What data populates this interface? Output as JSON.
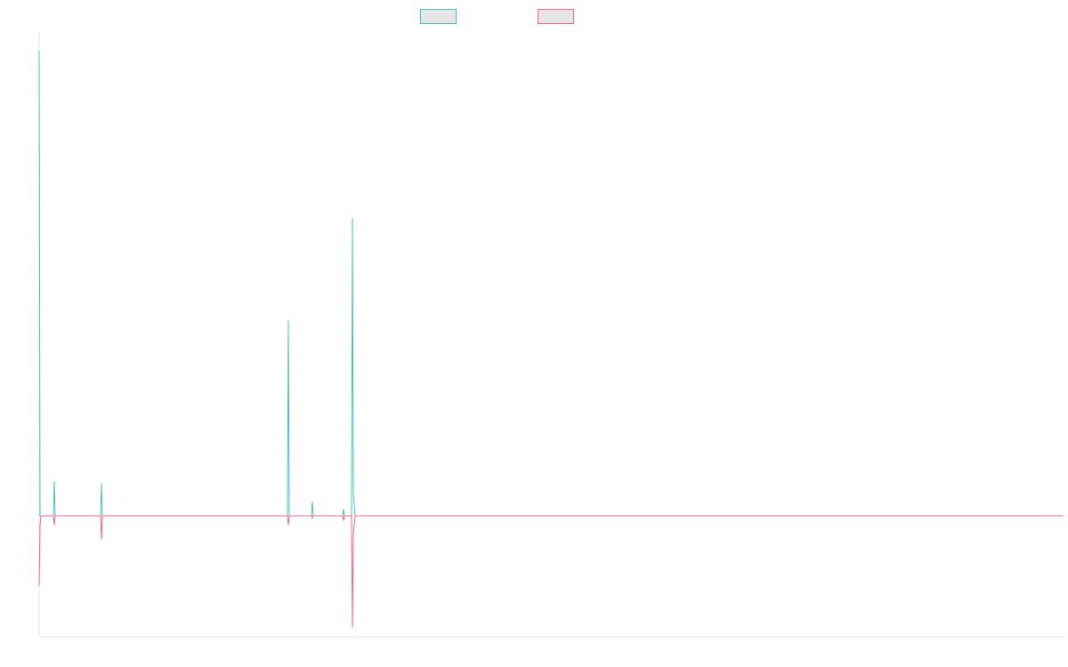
{
  "chart_data": {
    "type": "line",
    "title": "",
    "xlabel": "",
    "ylabel": "",
    "ylim": [
      -2.6,
      10.4
    ],
    "x": [
      0,
      1,
      2,
      3,
      4,
      5,
      6,
      7,
      8,
      9,
      10,
      11,
      12,
      13,
      14,
      15,
      16,
      17,
      18,
      19,
      20,
      21,
      22,
      23,
      24,
      25,
      26,
      27,
      28,
      29,
      30,
      31,
      32,
      33,
      34,
      35,
      36,
      37,
      38,
      39,
      40,
      41,
      42,
      43,
      44,
      45,
      46,
      47,
      48,
      49,
      50,
      51,
      52,
      53,
      54,
      55,
      56,
      57,
      58,
      59,
      60,
      61,
      62,
      63,
      64,
      65,
      66,
      67,
      68,
      69,
      70,
      71,
      72,
      73,
      74,
      75,
      76,
      77,
      78,
      79,
      80,
      81,
      82,
      83,
      84,
      85,
      86,
      87,
      88,
      89,
      90,
      91,
      92,
      93,
      94,
      95,
      96,
      97,
      98,
      99,
      100,
      101,
      102,
      103,
      104,
      105,
      106,
      107,
      108,
      109,
      110,
      111,
      112,
      113,
      114,
      115,
      116,
      117,
      118,
      119,
      120,
      121,
      122,
      123,
      124,
      125,
      126,
      127,
      128,
      129,
      130,
      131,
      132,
      133,
      134,
      135,
      136,
      137,
      138,
      139,
      140,
      141,
      142,
      143,
      144,
      145,
      146,
      147,
      148,
      149,
      150,
      151,
      152,
      153,
      154,
      155,
      156,
      157,
      158,
      159,
      160,
      161,
      162,
      163,
      164,
      165,
      166,
      167,
      168,
      169,
      170,
      171,
      172,
      173,
      174,
      175,
      176,
      177,
      178,
      179,
      180,
      181,
      182,
      183,
      184,
      185,
      186,
      187,
      188,
      189,
      190,
      191,
      192,
      193,
      194,
      195,
      196,
      197,
      198,
      199,
      200,
      201,
      202,
      203,
      204,
      205,
      206,
      207,
      208,
      209,
      210,
      211,
      212,
      213,
      214,
      215,
      216,
      217,
      218,
      219,
      220,
      221,
      222,
      223,
      224,
      225,
      226,
      227,
      228,
      229,
      230,
      231,
      232,
      233,
      234,
      235,
      236,
      237,
      238,
      239,
      240,
      241,
      242,
      243,
      244,
      245,
      246,
      247,
      248,
      249,
      250,
      251,
      252,
      253,
      254,
      255,
      256,
      257,
      258,
      259,
      260,
      261,
      262,
      263,
      264,
      265,
      266,
      267,
      268,
      269,
      270,
      271,
      272,
      273,
      274,
      275,
      276,
      277,
      278,
      279,
      280,
      281,
      282,
      283,
      284,
      285,
      286,
      287,
      288,
      289,
      290,
      291,
      292,
      293,
      294,
      295,
      296,
      297,
      298,
      299,
      300,
      301,
      302,
      303,
      304,
      305,
      306,
      307,
      308,
      309,
      310,
      311,
      312,
      313,
      314,
      315,
      316,
      317,
      318,
      319,
      320,
      321,
      322,
      323,
      324,
      325,
      326,
      327,
      328,
      329,
      330,
      331,
      332,
      333,
      334,
      335,
      336,
      337,
      338,
      339,
      340,
      341,
      342,
      343,
      344,
      345,
      346,
      347,
      348,
      349,
      350,
      351,
      352,
      353,
      354,
      355,
      356,
      357,
      358,
      359,
      360,
      361,
      362,
      363,
      364,
      365,
      366,
      367,
      368,
      369,
      370,
      371,
      372,
      373,
      374,
      375,
      376,
      377,
      378,
      379,
      380,
      381,
      382,
      383,
      384,
      385,
      386,
      387,
      388,
      389,
      390,
      391,
      392,
      393,
      394,
      395,
      396,
      397,
      398,
      399,
      400,
      401,
      402,
      403,
      404,
      405,
      406,
      407,
      408,
      409,
      410,
      411,
      412,
      413,
      414,
      415,
      416,
      417,
      418,
      419,
      420,
      421,
      422,
      423,
      424,
      425,
      426,
      427,
      428,
      429,
      430,
      431,
      432,
      433,
      434,
      435,
      436,
      437,
      438,
      439,
      440,
      441,
      442,
      443,
      444,
      445,
      446,
      447,
      448,
      449,
      450,
      451,
      452,
      453,
      454,
      455,
      456,
      457,
      458,
      459,
      460,
      461,
      462,
      463,
      464,
      465,
      466,
      467,
      468,
      469,
      470,
      471,
      472,
      473,
      474,
      475,
      476,
      477,
      478,
      479,
      480,
      481,
      482,
      483,
      484,
      485,
      486,
      487,
      488,
      489,
      490,
      491,
      492,
      493,
      494,
      495,
      496,
      497,
      498,
      499,
      500,
      501,
      502,
      503,
      504,
      505,
      506,
      507,
      508,
      509,
      510,
      511,
      512,
      513,
      514,
      515,
      516,
      517,
      518,
      519,
      520,
      521,
      522,
      523,
      524,
      525,
      526,
      527,
      528,
      529,
      530,
      531,
      532,
      533,
      534,
      535,
      536,
      537,
      538,
      539,
      540,
      541,
      542,
      543,
      544,
      545,
      546,
      547,
      548,
      549,
      550,
      551,
      552,
      553,
      554,
      555,
      556,
      557,
      558,
      559,
      560,
      561,
      562,
      563,
      564,
      565,
      566,
      567,
      568,
      569,
      570,
      571,
      572,
      573,
      574,
      575,
      576,
      577,
      578,
      579,
      580,
      581,
      582,
      583,
      584,
      585,
      586,
      587,
      588,
      589,
      590,
      591,
      592,
      593,
      594,
      595,
      596,
      597,
      598,
      599,
      600,
      601,
      602,
      603,
      604,
      605,
      606,
      607,
      608,
      609,
      610,
      611,
      612,
      613,
      614,
      615,
      616,
      617,
      618,
      619,
      620,
      621,
      622,
      623,
      624,
      625,
      626,
      627,
      628,
      629,
      630,
      631,
      632,
      633,
      634,
      635,
      636,
      637,
      638,
      639,
      640,
      641,
      642,
      643,
      644,
      645,
      646,
      647,
      648,
      649,
      650,
      651,
      652,
      653,
      654,
      655,
      656,
      657,
      658,
      659,
      660,
      661,
      662,
      663,
      664,
      665,
      666,
      667,
      668,
      669,
      670,
      671,
      672,
      673,
      674,
      675,
      676,
      677,
      678,
      679,
      680,
      681,
      682,
      683,
      684,
      685,
      686,
      687,
      688,
      689,
      690,
      691,
      692,
      693,
      694,
      695,
      696,
      697,
      698,
      699,
      700,
      701,
      702,
      703,
      704,
      705,
      706,
      707,
      708,
      709,
      710,
      711,
      712,
      713,
      714,
      715,
      716,
      717,
      718,
      719,
      720,
      721,
      722,
      723,
      724,
      725,
      726,
      727,
      728,
      729,
      730,
      731,
      732,
      733,
      734,
      735,
      736,
      737,
      738,
      739,
      740,
      741,
      742,
      743,
      744,
      745,
      746,
      747,
      748,
      749,
      750,
      751,
      752,
      753,
      754,
      755,
      756,
      757,
      758,
      759,
      760,
      761,
      762,
      763,
      764,
      765,
      766,
      767,
      768,
      769,
      770,
      771,
      772,
      773,
      774,
      775,
      776,
      777,
      778,
      779,
      780,
      781,
      782,
      783,
      784,
      785,
      786,
      787,
      788,
      789,
      790,
      791,
      792,
      793,
      794,
      795,
      796,
      797,
      798,
      799,
      800,
      801,
      802,
      803,
      804,
      805,
      806,
      807,
      808,
      809,
      810,
      811,
      812,
      813,
      814,
      815,
      816,
      817,
      818,
      819,
      820,
      821,
      822,
      823,
      824,
      825,
      826,
      827,
      828,
      829,
      830,
      831,
      832,
      833,
      834,
      835,
      836,
      837,
      838,
      839,
      840,
      841,
      842,
      843,
      844,
      845,
      846,
      847,
      848,
      849,
      850,
      851,
      852,
      853,
      854,
      855,
      856,
      857,
      858,
      859,
      860,
      861,
      862,
      863,
      864,
      865,
      866,
      867,
      868,
      869,
      870,
      871,
      872,
      873,
      874,
      875,
      876,
      877,
      878,
      879,
      880,
      881,
      882,
      883,
      884,
      885,
      886,
      887,
      888,
      889,
      890,
      891,
      892,
      893,
      894,
      895,
      896,
      897,
      898,
      899,
      900,
      901,
      902,
      903,
      904,
      905,
      906,
      907,
      908,
      909,
      910,
      911,
      912,
      913,
      914,
      915,
      916,
      917,
      918,
      919,
      920,
      921,
      922,
      923,
      924,
      925,
      926,
      927,
      928,
      929,
      930,
      931,
      932,
      933,
      934,
      935,
      936,
      937,
      938,
      939,
      940,
      941,
      942,
      943,
      944,
      945,
      946,
      947,
      948,
      949,
      950,
      951,
      952,
      953,
      954,
      955,
      956,
      957,
      958,
      959,
      960,
      961,
      962,
      963,
      964,
      965,
      966,
      967,
      968,
      969,
      970,
      971,
      972,
      973,
      974,
      975,
      976,
      977,
      978,
      979,
      980,
      981,
      982,
      983,
      984,
      985,
      986,
      987,
      988,
      989,
      990,
      991,
      992,
      993,
      994,
      995,
      996,
      997,
      998,
      999,
      1000,
      1001,
      1002,
      1003,
      1004,
      1005,
      1006,
      1007,
      1008,
      1009,
      1010,
      1011,
      1012,
      1013,
      1014,
      1015,
      1016,
      1017,
      1018,
      1019,
      1020,
      1021,
      1022,
      1023,
      1024,
      1025,
      1026,
      1027,
      1028,
      1029,
      1030,
      1031,
      1032,
      1033,
      1034,
      1035,
      1036,
      1037,
      1038,
      1039,
      1040,
      1041,
      1042,
      1043,
      1044,
      1045,
      1046,
      1047,
      1048,
      1049,
      1050,
      1051,
      1052,
      1053,
      1054,
      1055,
      1056,
      1057,
      1058,
      1059,
      1060,
      1061,
      1062,
      1063,
      1064,
      1065,
      1066,
      1067,
      1068,
      1069,
      1070,
      1071,
      1072,
      1073,
      1074,
      1075,
      1076,
      1077,
      1078,
      1079,
      1080,
      1081,
      1082,
      1083,
      1084,
      1085,
      1086,
      1087,
      1088,
      1089,
      1090,
      1091,
      1092,
      1093,
      1094,
      1095,
      1096,
      1097,
      1098,
      1099,
      1100,
      1101,
      1102,
      1103,
      1104,
      1105,
      1106,
      1107,
      1108,
      1109,
      1110,
      1111,
      1112,
      1113,
      1114,
      1115,
      1116,
      1117,
      1118,
      1119,
      1120,
      1121,
      1122,
      1123,
      1124,
      1125,
      1126,
      1127,
      1128,
      1129,
      1130,
      1131,
      1132,
      1133,
      1134,
      1135,
      1136,
      1137,
      1138,
      1139,
      1140,
      1141,
      1142,
      1143,
      1144,
      1145,
      1146,
      1147,
      1148,
      1149,
      1150,
      1151
    ],
    "series": [
      {
        "color": "#4bc0c0",
        "points": [
          [
            0,
            10
          ],
          [
            1,
            0
          ],
          [
            16,
            0
          ],
          [
            17,
            0.75
          ],
          [
            18,
            0
          ],
          [
            69,
            0
          ],
          [
            70,
            0.7
          ],
          [
            71,
            0
          ],
          [
            279,
            0
          ],
          [
            280,
            4.2
          ],
          [
            281,
            0
          ],
          [
            306,
            0
          ],
          [
            307,
            0.3
          ],
          [
            308,
            0
          ],
          [
            341,
            0
          ],
          [
            342,
            0.15
          ],
          [
            343,
            0
          ],
          [
            351,
            0
          ],
          [
            352,
            6.4
          ],
          [
            353,
            0.5
          ],
          [
            355,
            0
          ],
          [
            1151,
            0
          ]
        ]
      },
      {
        "color": "#ff6384",
        "points": [
          [
            0,
            -1.5
          ],
          [
            1,
            -0.2
          ],
          [
            2,
            0
          ],
          [
            16,
            0
          ],
          [
            17,
            -0.2
          ],
          [
            18,
            0
          ],
          [
            69,
            0
          ],
          [
            70,
            -0.5
          ],
          [
            71,
            0
          ],
          [
            279,
            0
          ],
          [
            280,
            -0.2
          ],
          [
            281,
            0
          ],
          [
            306,
            0
          ],
          [
            307,
            -0.05
          ],
          [
            308,
            0
          ],
          [
            341,
            0
          ],
          [
            342,
            -0.1
          ],
          [
            343,
            0
          ],
          [
            351,
            0
          ],
          [
            352,
            -2.4
          ],
          [
            353,
            -0.4
          ],
          [
            355,
            0
          ],
          [
            1151,
            0
          ]
        ]
      }
    ],
    "legend": {
      "position": "top-center",
      "items": [
        {
          "label": "",
          "color": "#4bc0c0"
        },
        {
          "label": "",
          "color": "#ff6384"
        }
      ]
    },
    "grid": false
  }
}
